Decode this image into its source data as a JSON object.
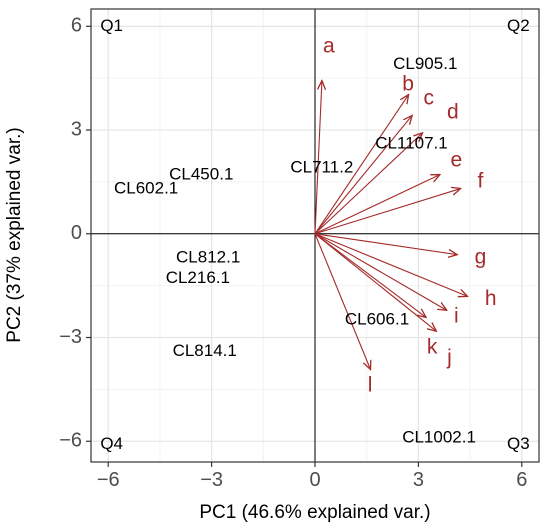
{
  "chart_data": {
    "type": "scatter",
    "subtype": "pca-biplot",
    "xlabel": "PC1 (46.6% explained var.)",
    "ylabel": "PC2 (37% explained var.)",
    "xlim": [
      -6.5,
      6.5
    ],
    "ylim": [
      -6.6,
      6.5
    ],
    "xticks": [
      -6,
      -3,
      0,
      3,
      6
    ],
    "yticks": [
      -6,
      -3,
      0,
      3,
      6
    ],
    "xtick_labels": [
      "−6",
      "−3",
      "0",
      "3",
      "6"
    ],
    "ytick_labels": [
      "−6",
      "−3",
      "0",
      "3",
      "6"
    ],
    "grid": true,
    "arrow_color": "#a52a2a",
    "quadrants": [
      {
        "label": "Q1",
        "x": -5.9,
        "y": 6.0
      },
      {
        "label": "Q2",
        "x": 5.9,
        "y": 6.0
      },
      {
        "label": "Q3",
        "x": 5.9,
        "y": -6.1
      },
      {
        "label": "Q4",
        "x": -5.9,
        "y": -6.1
      }
    ],
    "observations": [
      {
        "label": "CL905.1",
        "x": 3.2,
        "y": 4.9
      },
      {
        "label": "CL1107.1",
        "x": 2.8,
        "y": 2.6
      },
      {
        "label": "CL711.2",
        "x": 0.2,
        "y": 1.9
      },
      {
        "label": "CL450.1",
        "x": -3.3,
        "y": 1.7
      },
      {
        "label": "CL602.1",
        "x": -4.9,
        "y": 1.3
      },
      {
        "label": "CL812.1",
        "x": -3.1,
        "y": -0.7
      },
      {
        "label": "CL216.1",
        "x": -3.4,
        "y": -1.3
      },
      {
        "label": "CL606.1",
        "x": 1.8,
        "y": -2.5
      },
      {
        "label": "CL814.1",
        "x": -3.2,
        "y": -3.4
      },
      {
        "label": "CL1002.1",
        "x": 3.6,
        "y": -5.9
      }
    ],
    "loadings": [
      {
        "label": "a",
        "x": 0.2,
        "y": 4.4,
        "lx": 0.4,
        "ly": 5.4
      },
      {
        "label": "b",
        "x": 2.7,
        "y": 4.0,
        "lx": 2.7,
        "ly": 4.3
      },
      {
        "label": "c",
        "x": 2.8,
        "y": 3.4,
        "lx": 3.3,
        "ly": 3.9
      },
      {
        "label": "d",
        "x": 3.1,
        "y": 2.9,
        "lx": 4.0,
        "ly": 3.5
      },
      {
        "label": "e",
        "x": 3.6,
        "y": 1.7,
        "lx": 4.1,
        "ly": 2.1
      },
      {
        "label": "f",
        "x": 4.2,
        "y": 1.3,
        "lx": 4.8,
        "ly": 1.5
      },
      {
        "label": "g",
        "x": 4.1,
        "y": -0.6,
        "lx": 4.8,
        "ly": -0.7
      },
      {
        "label": "h",
        "x": 4.4,
        "y": -1.8,
        "lx": 5.1,
        "ly": -1.9
      },
      {
        "label": "i",
        "x": 3.8,
        "y": -2.2,
        "lx": 4.1,
        "ly": -2.4
      },
      {
        "label": "j",
        "x": 3.5,
        "y": -2.8,
        "lx": 3.9,
        "ly": -3.6
      },
      {
        "label": "k",
        "x": 3.2,
        "y": -2.4,
        "lx": 3.4,
        "ly": -3.3
      },
      {
        "label": "l",
        "x": 1.6,
        "y": -3.9,
        "lx": 1.6,
        "ly": -4.4
      }
    ]
  }
}
